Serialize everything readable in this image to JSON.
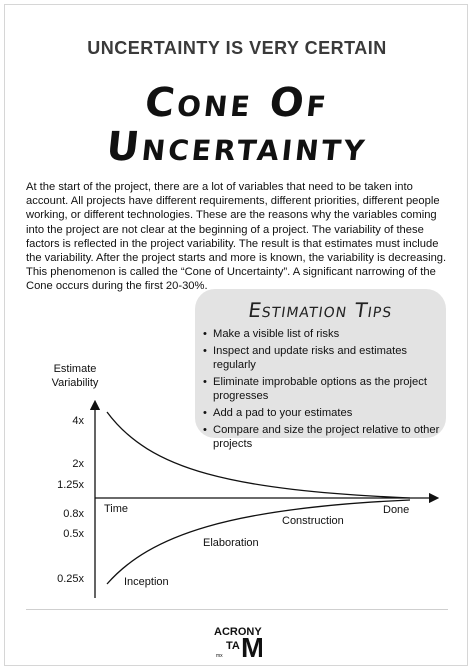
{
  "kicker": "UNCERTAINTY IS VERY CERTAIN",
  "title": [
    "Cone Of",
    "Uncertainty"
  ],
  "intro": "At the start of the project, there are a lot of variables that need to be taken into account. All projects have different requirements, different priorities, different people working, or different technologies. These are the reasons why the variables coming into the project are not clear at the beginning of a project. The variability of these factors is reflected in the project variability. The result is that estimates must include the variability. After the project starts and more is known, the variability is decreasing. This phenomenon is called the “Cone of Uncertainty”. A significant narrowing of the Cone occurs during the first 20-30%.",
  "tips": {
    "title": "Estimation Tips",
    "items": [
      "Make a visible list of risks",
      "Inspect and update risks and estimates regularly",
      "Eliminate improbable options as the project progresses",
      "Add a pad to your estimates",
      "Compare and size the project relative to other projects"
    ]
  },
  "chart_data": {
    "type": "line",
    "ylabel": "Estimate Variability",
    "y_ticks": [
      "4x",
      "2x",
      "1.25x",
      "0.8x",
      "0.5x",
      "0.25x"
    ],
    "phases": [
      "Time",
      "Inception",
      "Elaboration",
      "Construction",
      "Done"
    ],
    "series": [
      {
        "values_from": "4x",
        "values_to": "1x"
      },
      {
        "values_from": "0.25x",
        "values_to": "1x"
      }
    ]
  },
  "logo": {
    "text": [
      "ACRONY",
      "TA",
      "M",
      "mx"
    ]
  }
}
